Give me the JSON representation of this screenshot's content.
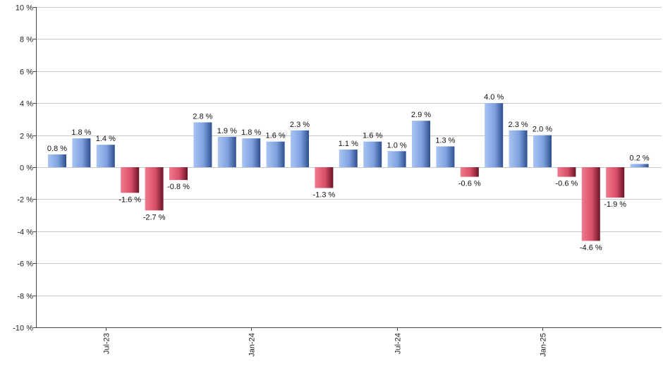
{
  "chart_data": {
    "type": "bar",
    "title": "",
    "xlabel": "",
    "ylabel": "",
    "ylim": [
      -10,
      10
    ],
    "y_ticks": [
      10,
      8,
      6,
      4,
      2,
      0,
      -2,
      -4,
      -6,
      -8,
      -10
    ],
    "y_tick_labels": [
      "10 %",
      "8 %",
      "6 %",
      "4 %",
      "2 %",
      "0 %",
      "-2 %",
      "-4 %",
      "-6 %",
      "-8 %",
      "-10 %"
    ],
    "grid": true,
    "x_tick_labels": [
      {
        "label": "Jul-23",
        "index": 2
      },
      {
        "label": "Jan-24",
        "index": 8
      },
      {
        "label": "Jul-24",
        "index": 14
      },
      {
        "label": "Jan-25",
        "index": 20
      }
    ],
    "values": [
      0.8,
      1.8,
      1.4,
      -1.6,
      -2.7,
      -0.8,
      2.8,
      1.9,
      1.8,
      1.6,
      2.3,
      -1.3,
      1.1,
      1.6,
      1.0,
      2.9,
      1.3,
      -0.6,
      4.0,
      2.3,
      2.0,
      -0.6,
      -4.6,
      -1.9,
      0.2
    ],
    "labels": [
      "0.8 %",
      "1.8 %",
      "1.4 %",
      "-1.6 %",
      "-2.7 %",
      "-0.8 %",
      "2.8 %",
      "1.9 %",
      "1.8 %",
      "1.6 %",
      "2.3 %",
      "-1.3 %",
      "1.1 %",
      "1.6 %",
      "1.0 %",
      "2.9 %",
      "1.3 %",
      "-0.6 %",
      "4.0 %",
      "2.3 %",
      "2.0 %",
      "-0.6 %",
      "-4.6 %",
      "-1.9 %",
      "0.2 %"
    ],
    "colors": {
      "positive": "#7ea1e0",
      "positive_dark": "#2f4f8f",
      "negative": "#d9506a",
      "negative_dark": "#6b1426",
      "grid": "#c8c8c8",
      "axis": "#444444"
    }
  }
}
